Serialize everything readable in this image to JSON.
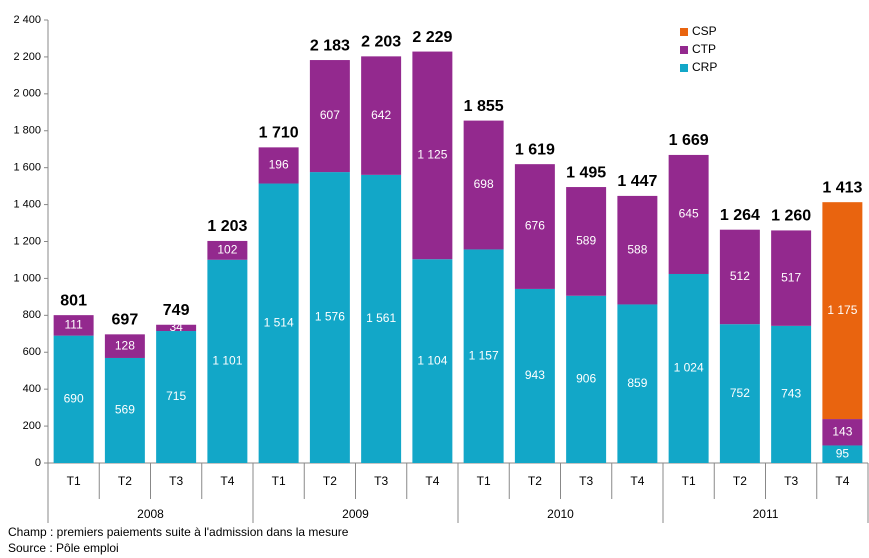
{
  "chart_data": {
    "type": "stacked_bar",
    "categories": [
      "T1",
      "T2",
      "T3",
      "T4",
      "T1",
      "T2",
      "T3",
      "T4",
      "T1",
      "T2",
      "T3",
      "T4",
      "T1",
      "T2",
      "T3",
      "T4"
    ],
    "groups": [
      "2008",
      "2009",
      "2010",
      "2011"
    ],
    "series": [
      {
        "name": "CRP",
        "color": "#12a7c8",
        "values": [
          690,
          569,
          715,
          1101,
          1514,
          1576,
          1561,
          1104,
          1157,
          943,
          906,
          859,
          1024,
          752,
          743,
          95
        ],
        "value_labels": [
          "690",
          "569",
          "715",
          "1 101",
          "1 514",
          "1 576",
          "1 561",
          "1 104",
          "1 157",
          "943",
          "906",
          "859",
          "1 024",
          "752",
          "743",
          "95"
        ]
      },
      {
        "name": "CTP",
        "color": "#93298e",
        "values": [
          111,
          128,
          34,
          102,
          196,
          607,
          642,
          1125,
          698,
          676,
          589,
          588,
          645,
          512,
          517,
          143
        ],
        "value_labels": [
          "111",
          "128",
          "34",
          "102",
          "196",
          "607",
          "642",
          "1 125",
          "698",
          "676",
          "589",
          "588",
          "645",
          "512",
          "517",
          "143"
        ]
      },
      {
        "name": "CSP",
        "color": "#e9640f",
        "values": [
          null,
          null,
          null,
          null,
          null,
          null,
          null,
          null,
          null,
          null,
          null,
          null,
          null,
          null,
          null,
          1175
        ],
        "value_labels": [
          null,
          null,
          null,
          null,
          null,
          null,
          null,
          null,
          null,
          null,
          null,
          null,
          null,
          null,
          null,
          "1 175"
        ]
      }
    ],
    "totals": [
      801,
      697,
      749,
      1203,
      1710,
      2183,
      2203,
      2229,
      1855,
      1619,
      1495,
      1447,
      1669,
      1264,
      1260,
      1413
    ],
    "total_labels": [
      "801",
      "697",
      "749",
      "1 203",
      "1 710",
      "2 183",
      "2 203",
      "2 229",
      "1 855",
      "1 619",
      "1 495",
      "1 447",
      "1 669",
      "1 264",
      "1 260",
      "1 413"
    ],
    "ylim": [
      0,
      2400
    ],
    "yticks": [
      0,
      200,
      400,
      600,
      800,
      {
        "value": 1000,
        "label": "1 000"
      },
      {
        "value": 1200,
        "label": "1 200"
      },
      {
        "value": 1400,
        "label": "1 400"
      },
      {
        "value": 1600,
        "label": "1 600"
      },
      {
        "value": 1800,
        "label": "1 800"
      },
      {
        "value": 2000,
        "label": "2 000"
      },
      {
        "value": 2200,
        "label": "2 200"
      },
      {
        "value": 2400,
        "label": "2 400"
      }
    ],
    "grid": false,
    "legend": "top-right",
    "notes": [
      "Champ : premiers paiements suite à l'admission dans la mesure",
      "Source : Pôle emploi"
    ]
  }
}
